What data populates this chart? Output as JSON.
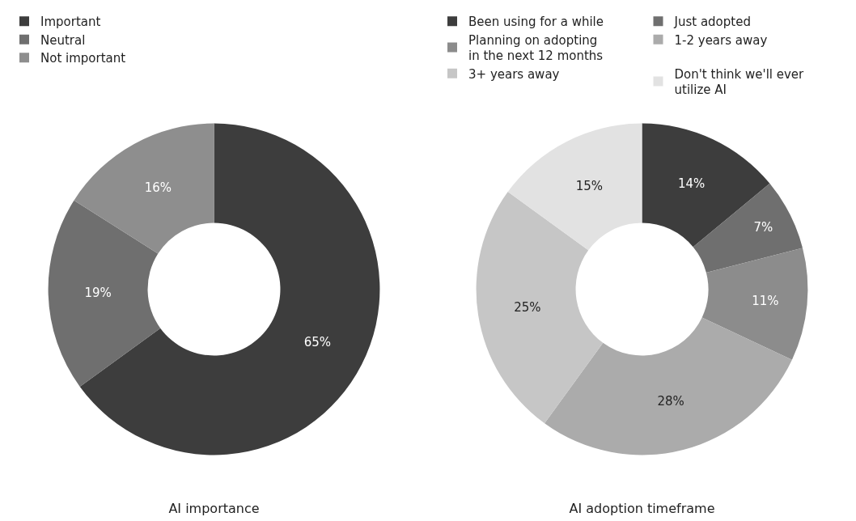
{
  "chart_data": [
    {
      "type": "donut",
      "title": "AI importance",
      "categories": [
        "Important",
        "Neutral",
        "Not important"
      ],
      "values": [
        65,
        19,
        16
      ],
      "colors": [
        "#3d3d3d",
        "#6f6f6f",
        "#8e8e8e"
      ],
      "value_labels": [
        "65%",
        "19%",
        "16%"
      ],
      "legend": "top left"
    },
    {
      "type": "donut",
      "title": "AI adoption timeframe",
      "categories": [
        "Been using for a while",
        "Just adopted",
        "Planning on adopting in the next 12 months",
        "1-2 years away",
        "3+ years away",
        "Don't think we'll ever utilize AI"
      ],
      "values": [
        14,
        7,
        11,
        28,
        25,
        15
      ],
      "colors": [
        "#3d3d3d",
        "#6f6f6f",
        "#8c8c8c",
        "#ababab",
        "#c6c6c6",
        "#e2e2e2"
      ],
      "value_labels": [
        "14%",
        "7%",
        "11%",
        "28%",
        "25%",
        "15%"
      ],
      "legend": "top left"
    }
  ]
}
